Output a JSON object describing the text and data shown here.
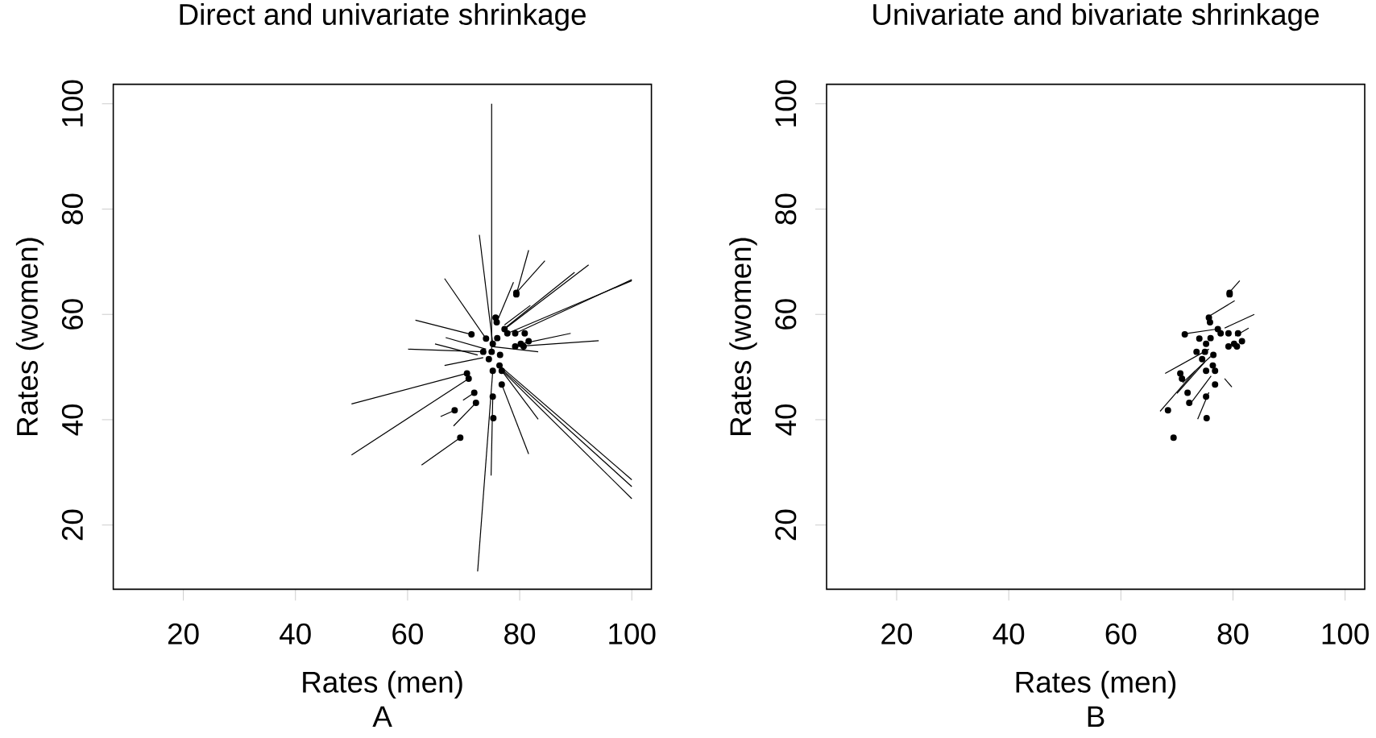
{
  "chart_data": [
    {
      "type": "scatter",
      "title": "Direct and univariate shrinkage",
      "xlabel": "Rates (men)",
      "ylabel": "Rates (women)",
      "annotations": [
        "A"
      ],
      "xlim": [
        7.5,
        103.5
      ],
      "ylim": [
        7.8,
        103.7
      ],
      "xticks": [
        20,
        40,
        60,
        80,
        100
      ],
      "yticks": [
        20,
        40,
        60,
        80,
        100
      ],
      "grid": false,
      "series": [
        {
          "type": "line",
          "color": "#000000",
          "x": [
            75,
            75
          ],
          "values": [
            52.9,
            100
          ]
        },
        {
          "type": "line",
          "color": "#000000",
          "x": [
            75.2,
            72.8
          ],
          "values": [
            54.4,
            75.1
          ]
        },
        {
          "type": "line",
          "color": "#000000",
          "x": [
            74,
            66.6
          ],
          "values": [
            55.4,
            66.8
          ]
        },
        {
          "type": "line",
          "color": "#000000",
          "x": [
            71.4,
            61.4
          ],
          "values": [
            56.2,
            58.9
          ]
        },
        {
          "type": "line",
          "color": "#000000",
          "x": [
            73.5,
            60.1
          ],
          "values": [
            52.9,
            53.4
          ]
        },
        {
          "type": "line",
          "color": "#000000",
          "x": [
            70.6,
            50
          ],
          "values": [
            48.8,
            43
          ]
        },
        {
          "type": "line",
          "color": "#000000",
          "x": [
            70.9,
            50
          ],
          "values": [
            47.8,
            33.3
          ]
        },
        {
          "type": "line",
          "color": "#000000",
          "x": [
            69.4,
            62.5
          ],
          "values": [
            36.6,
            31.4
          ]
        },
        {
          "type": "line",
          "color": "#000000",
          "x": [
            68.4,
            65.9
          ],
          "values": [
            41.8,
            40.6
          ]
        },
        {
          "type": "line",
          "color": "#000000",
          "x": [
            72.2,
            68.2
          ],
          "values": [
            43.2,
            38.8
          ]
        },
        {
          "type": "line",
          "color": "#000000",
          "x": [
            71.9,
            69.9
          ],
          "values": [
            45.1,
            43.7
          ]
        },
        {
          "type": "line",
          "color": "#000000",
          "x": [
            75.2,
            72.5
          ],
          "values": [
            49.3,
            11.2
          ]
        },
        {
          "type": "line",
          "color": "#000000",
          "x": [
            75.2,
            74.9
          ],
          "values": [
            44.4,
            29.4
          ]
        },
        {
          "type": "line",
          "color": "#000000",
          "x": [
            76.8,
            81.6
          ],
          "values": [
            46.7,
            33.5
          ]
        },
        {
          "type": "line",
          "color": "#000000",
          "x": [
            76.8,
            83.3
          ],
          "values": [
            49.3,
            40.1
          ]
        },
        {
          "type": "line",
          "color": "#000000",
          "x": [
            76.4,
            100
          ],
          "values": [
            50.3,
            28.6
          ]
        },
        {
          "type": "line",
          "color": "#000000",
          "x": [
            76.4,
            100
          ],
          "values": [
            50.0,
            27.3
          ]
        },
        {
          "type": "line",
          "color": "#000000",
          "x": [
            76.6,
            100
          ],
          "values": [
            49.6,
            25
          ]
        },
        {
          "type": "line",
          "color": "#000000",
          "x": [
            79.2,
            94.1
          ],
          "values": [
            53.9,
            55
          ]
        },
        {
          "type": "line",
          "color": "#000000",
          "x": [
            80.2,
            89.1
          ],
          "values": [
            54.4,
            56.4
          ]
        },
        {
          "type": "line",
          "color": "#000000",
          "x": [
            79.2,
            100
          ],
          "values": [
            56.4,
            66.6
          ]
        },
        {
          "type": "line",
          "color": "#000000",
          "x": [
            77.8,
            100
          ],
          "values": [
            56.4,
            66.4
          ]
        },
        {
          "type": "line",
          "color": "#000000",
          "x": [
            77.3,
            92.3
          ],
          "values": [
            57.2,
            69.4
          ]
        },
        {
          "type": "line",
          "color": "#000000",
          "x": [
            77.5,
            89.8
          ],
          "values": [
            57.5,
            68
          ]
        },
        {
          "type": "line",
          "color": "#000000",
          "x": [
            79.4,
            81.6
          ],
          "values": [
            63.8,
            72.2
          ]
        },
        {
          "type": "line",
          "color": "#000000",
          "x": [
            79.4,
            84.5
          ],
          "values": [
            64.1,
            70.2
          ]
        },
        {
          "type": "line",
          "color": "#000000",
          "x": [
            75.9,
            78.9
          ],
          "values": [
            58.5,
            66.1
          ]
        },
        {
          "type": "line",
          "color": "#000000",
          "x": [
            75,
            83.3
          ],
          "values": [
            53.9,
            52.9
          ]
        },
        {
          "type": "line",
          "color": "#000000",
          "x": [
            74,
            66.8
          ],
          "values": [
            53.4,
            55.6
          ]
        },
        {
          "type": "line",
          "color": "#000000",
          "x": [
            72.5,
            64.9
          ],
          "values": [
            52.3,
            54.4
          ]
        },
        {
          "type": "line",
          "color": "#000000",
          "x": [
            73.5,
            66.6
          ],
          "values": [
            51.8,
            50.3
          ]
        },
        {
          "type": "line",
          "color": "#000000",
          "x": [
            77.3,
            81.9
          ],
          "values": [
            58,
            61.7
          ]
        },
        {
          "color": "#000000",
          "marker": "circle",
          "x": [
            75,
            75.2,
            74,
            71.4,
            73.5,
            70.6,
            70.9,
            69.4,
            68.4,
            72.2,
            71.9,
            75.2,
            75.2,
            75.3,
            76.8,
            76.8,
            76.4,
            79.2,
            80.2,
            79.2,
            77.8,
            77.3,
            79.4,
            79.4,
            75.9,
            75.7,
            80.7,
            81.6,
            80.9,
            76,
            74.5,
            76.5
          ],
          "values": [
            52.9,
            54.4,
            55.4,
            56.2,
            52.9,
            48.8,
            47.8,
            36.6,
            41.8,
            43.2,
            45.1,
            49.3,
            44.4,
            40.3,
            46.7,
            49.3,
            50.3,
            53.9,
            54.4,
            56.4,
            56.4,
            57.2,
            63.8,
            64.1,
            58.5,
            59.4,
            53.9,
            54.9,
            56.4,
            55.5,
            51.5,
            52.3
          ]
        }
      ]
    },
    {
      "type": "scatter",
      "title": "Univariate and bivariate shrinkage",
      "xlabel": "Rates (men)",
      "ylabel": "Rates (women)",
      "annotations": [
        "B"
      ],
      "xlim": [
        7.5,
        103.5
      ],
      "ylim": [
        7.8,
        103.7
      ],
      "xticks": [
        20,
        40,
        60,
        80,
        100
      ],
      "yticks": [
        20,
        40,
        60,
        80,
        100
      ],
      "grid": false,
      "series": [
        {
          "type": "line",
          "color": "#000000",
          "x": [
            79.3,
            81.2
          ],
          "values": [
            64.1,
            66.4
          ]
        },
        {
          "type": "line",
          "color": "#000000",
          "x": [
            75.8,
            80.3
          ],
          "values": [
            59.7,
            62.6
          ]
        },
        {
          "type": "line",
          "color": "#000000",
          "x": [
            71.3,
            77.1
          ],
          "values": [
            56.3,
            57.2
          ]
        },
        {
          "type": "line",
          "color": "#000000",
          "x": [
            67,
            73.3
          ],
          "values": [
            41.6,
            49.3
          ]
        },
        {
          "type": "line",
          "color": "#000000",
          "x": [
            67.9,
            75.7
          ],
          "values": [
            48.8,
            53.4
          ]
        },
        {
          "type": "line",
          "color": "#000000",
          "x": [
            73.7,
            75.7
          ],
          "values": [
            40.1,
            45.2
          ]
        },
        {
          "type": "line",
          "color": "#000000",
          "x": [
            83.8,
            78.5
          ],
          "values": [
            60,
            57.4
          ]
        },
        {
          "type": "line",
          "color": "#000000",
          "x": [
            82.8,
            80.4
          ],
          "values": [
            57.4,
            55.9
          ]
        },
        {
          "type": "line",
          "color": "#000000",
          "x": [
            79.8,
            78.5
          ],
          "values": [
            46.2,
            47.8
          ]
        },
        {
          "type": "line",
          "color": "#000000",
          "x": [
            72.5,
            76.1
          ],
          "values": [
            43.2,
            48.3
          ]
        },
        {
          "type": "line",
          "color": "#000000",
          "x": [
            70,
            75
          ],
          "values": [
            45,
            51
          ]
        },
        {
          "type": "line",
          "color": "#000000",
          "x": [
            71,
            76
          ],
          "values": [
            47,
            52
          ]
        },
        {
          "color": "#000000",
          "marker": "circle",
          "x": [
            75,
            75.2,
            74,
            71.4,
            73.5,
            70.6,
            70.9,
            69.4,
            68.4,
            72.2,
            71.9,
            75.2,
            75.2,
            75.3,
            76.8,
            76.8,
            76.4,
            79.2,
            80.2,
            79.2,
            77.8,
            77.3,
            79.4,
            79.4,
            75.9,
            75.7,
            80.7,
            81.6,
            80.9,
            76,
            74.5,
            76.5
          ],
          "values": [
            52.9,
            54.4,
            55.4,
            56.2,
            52.9,
            48.8,
            47.8,
            36.6,
            41.8,
            43.2,
            45.1,
            49.3,
            44.4,
            40.3,
            46.7,
            49.3,
            50.3,
            53.9,
            54.4,
            56.4,
            56.4,
            57.2,
            63.8,
            64.1,
            58.5,
            59.4,
            53.9,
            54.9,
            56.4,
            55.5,
            51.5,
            52.3
          ]
        }
      ]
    }
  ]
}
